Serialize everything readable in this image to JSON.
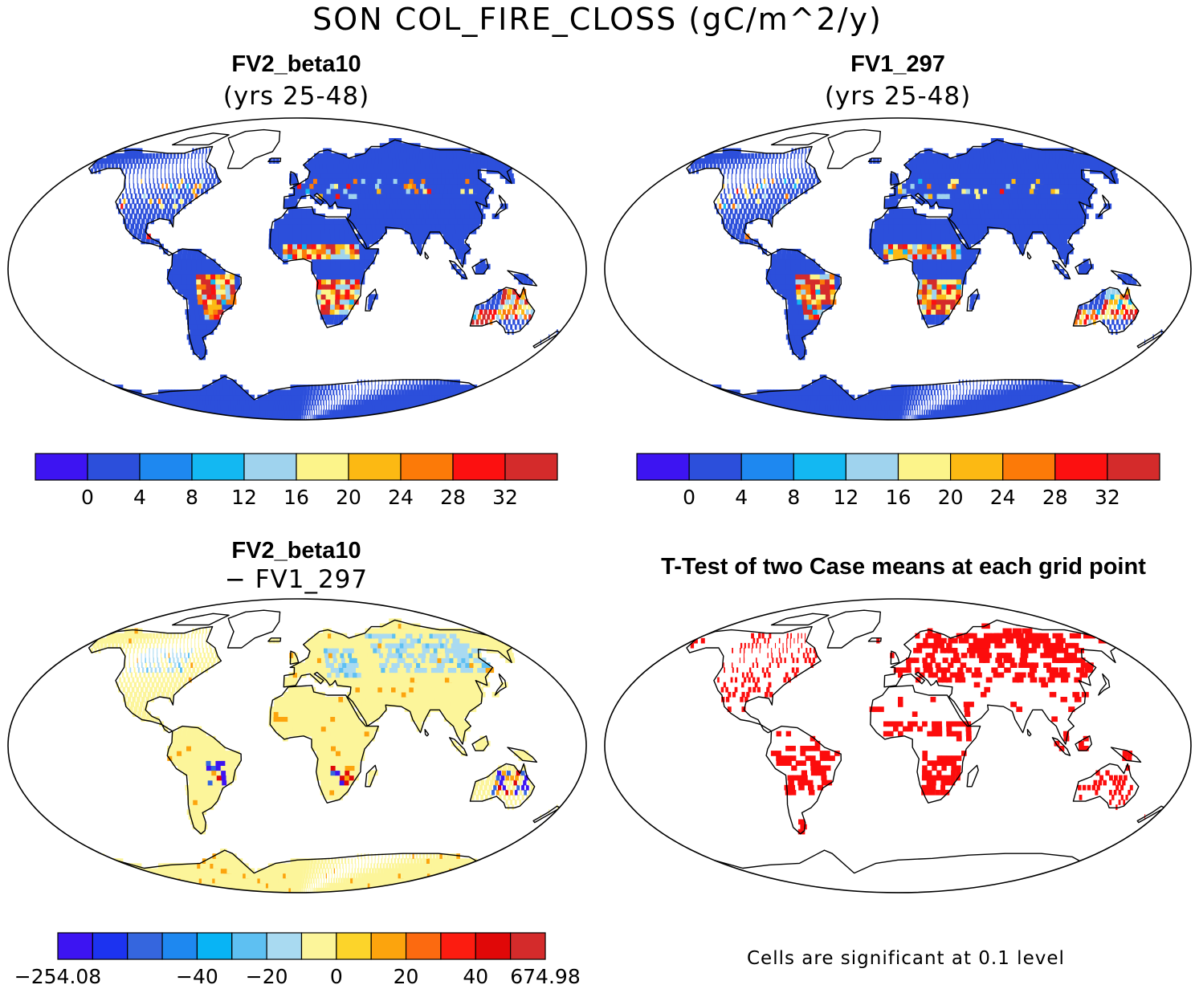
{
  "title": "SON COL_FIRE_CLOSS (gC/m^2/y)",
  "footnote": "Cells are significant at 0.1 level",
  "colors": {
    "panel_a": [
      "#3d14f2",
      "#2c4fdb",
      "#1e88f0",
      "#13b8f2",
      "#9fd3ee",
      "#fcf48a",
      "#fcb913",
      "#fc7a08",
      "#fc1010",
      "#d42b2b"
    ],
    "panel_c": [
      "#3d14f2",
      "#1c33f0",
      "#3566de",
      "#1e88f0",
      "#08b4f5",
      "#5ec0f2",
      "#a9daf1",
      "#fcf59a",
      "#fcd42a",
      "#fca40d",
      "#fc6a10",
      "#fc1c10",
      "#e00808",
      "#d42b2b"
    ],
    "land": "#2d4fdc",
    "sig": "#fc0c0c"
  },
  "chart_data": [
    {
      "type": "heatmap",
      "panel": "top-left",
      "title": "FV2_beta10",
      "subtitle": "(yrs 25-48)",
      "colorbar": {
        "ticks": [
          "0",
          "4",
          "8",
          "12",
          "16",
          "20",
          "24",
          "28",
          "32"
        ],
        "levels": [
          0,
          4,
          8,
          12,
          16,
          20,
          24,
          28,
          32
        ],
        "n_boxes": 10
      }
    },
    {
      "type": "heatmap",
      "panel": "top-right",
      "title": "FV1_297",
      "subtitle": "(yrs 25-48)",
      "colorbar": {
        "ticks": [
          "0",
          "4",
          "8",
          "12",
          "16",
          "20",
          "24",
          "28",
          "32"
        ],
        "levels": [
          0,
          4,
          8,
          12,
          16,
          20,
          24,
          28,
          32
        ],
        "n_boxes": 10
      }
    },
    {
      "type": "heatmap",
      "panel": "bottom-left",
      "title": "FV2_beta10",
      "subtitle": "− FV1_297",
      "colorbar": {
        "ticks": [
          "−254.08",
          "−40",
          "−20",
          "0",
          "20",
          "40",
          "674.98"
        ],
        "tick_boxes": [
          0,
          4,
          6,
          8,
          10,
          12,
          14
        ],
        "n_boxes": 14
      }
    },
    {
      "type": "heatmap",
      "panel": "bottom-right",
      "title": "T-Test of two Case means at each grid point"
    }
  ]
}
